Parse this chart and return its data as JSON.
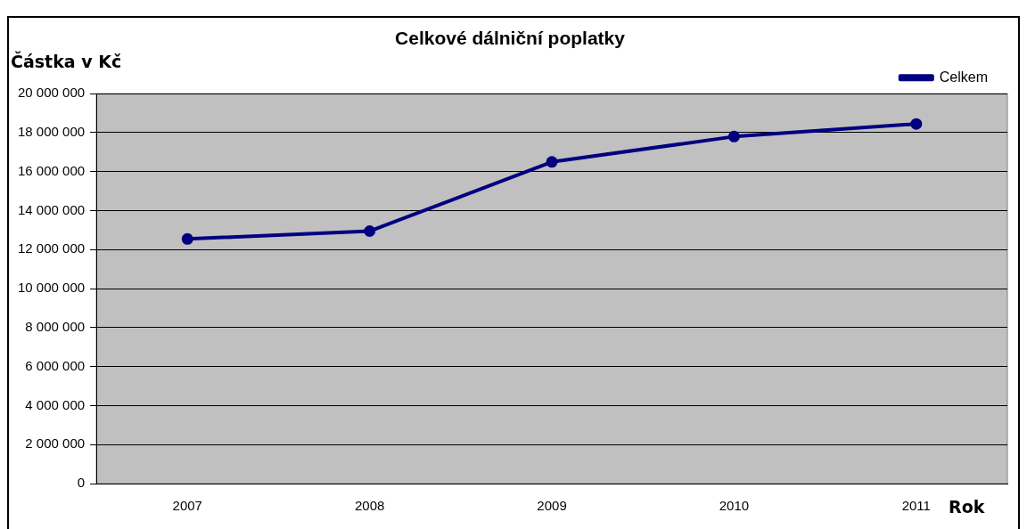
{
  "chart_data": {
    "type": "line",
    "title": "Celkové dálniční poplatky",
    "ylabel": "Částka v Kč",
    "xlabel": "Rok",
    "categories": [
      "2007",
      "2008",
      "2009",
      "2010",
      "2011"
    ],
    "series": [
      {
        "name": "Celkem",
        "color": "#000080",
        "values": [
          12550000,
          12950000,
          16500000,
          17800000,
          18450000
        ]
      }
    ],
    "ylim": [
      0,
      20000000
    ],
    "yticks": [
      {
        "value": 0,
        "label": "0"
      },
      {
        "value": 2000000,
        "label": "2 000 000"
      },
      {
        "value": 4000000,
        "label": "4 000 000"
      },
      {
        "value": 6000000,
        "label": "6 000 000"
      },
      {
        "value": 8000000,
        "label": "8 000 000"
      },
      {
        "value": 10000000,
        "label": "10 000 000"
      },
      {
        "value": 12000000,
        "label": "12 000 000"
      },
      {
        "value": 14000000,
        "label": "14 000 000"
      },
      {
        "value": 16000000,
        "label": "16 000 000"
      },
      {
        "value": 18000000,
        "label": "18 000 000"
      },
      {
        "value": 20000000,
        "label": "20 000 000"
      }
    ],
    "grid": "y",
    "legend": "top right",
    "marker": "circle",
    "line_style": "solid"
  }
}
